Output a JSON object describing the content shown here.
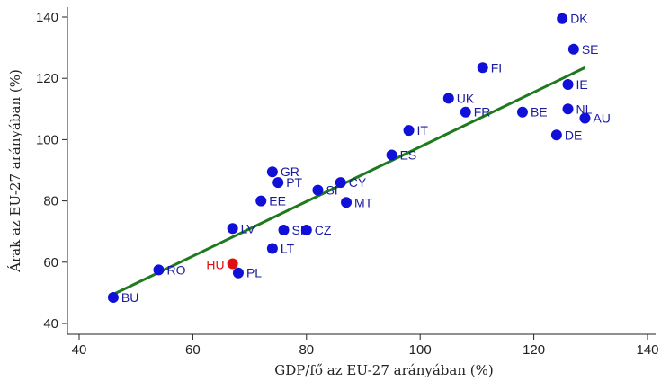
{
  "chart_data": {
    "type": "scatter",
    "xlabel": "GDP/fő az EU-27 arányában (%)",
    "ylabel": "Árak az EU-27 arányában (%)",
    "xlim": [
      40,
      140
    ],
    "ylim": [
      40,
      140
    ],
    "xticks": [
      40,
      60,
      80,
      100,
      120,
      140
    ],
    "yticks": [
      40,
      60,
      80,
      100,
      120,
      140
    ],
    "grid": false,
    "colors": {
      "point": "#1010d8",
      "highlight": "#e01010",
      "label": "#1a1aa0",
      "highlight_label": "#e01010",
      "fit_line": "#1f7a1f"
    },
    "points": [
      {
        "label": "DK",
        "x": 125,
        "y": 139.5
      },
      {
        "label": "SE",
        "x": 127,
        "y": 129.5
      },
      {
        "label": "FI",
        "x": 111,
        "y": 123.5
      },
      {
        "label": "IE",
        "x": 126,
        "y": 118
      },
      {
        "label": "UK",
        "x": 105,
        "y": 113.5
      },
      {
        "label": "NL",
        "x": 126,
        "y": 110
      },
      {
        "label": "FR",
        "x": 108,
        "y": 109
      },
      {
        "label": "BE",
        "x": 118,
        "y": 109
      },
      {
        "label": "AU",
        "x": 129,
        "y": 107
      },
      {
        "label": "IT",
        "x": 98,
        "y": 103
      },
      {
        "label": "DE",
        "x": 124,
        "y": 101.5
      },
      {
        "label": "ES",
        "x": 95,
        "y": 95
      },
      {
        "label": "GR",
        "x": 74,
        "y": 89.5
      },
      {
        "label": "PT",
        "x": 75,
        "y": 86
      },
      {
        "label": "CY",
        "x": 86,
        "y": 86
      },
      {
        "label": "SI",
        "x": 82,
        "y": 83.5
      },
      {
        "label": "EE",
        "x": 72,
        "y": 80
      },
      {
        "label": "MT",
        "x": 87,
        "y": 79.5
      },
      {
        "label": "LV",
        "x": 67,
        "y": 71
      },
      {
        "label": "SK",
        "x": 76,
        "y": 70.5
      },
      {
        "label": "CZ",
        "x": 80,
        "y": 70.5
      },
      {
        "label": "LT",
        "x": 74,
        "y": 64.5
      },
      {
        "label": "HU",
        "x": 67,
        "y": 59.5,
        "highlight": true
      },
      {
        "label": "RO",
        "x": 54,
        "y": 57.5
      },
      {
        "label": "PL",
        "x": 68,
        "y": 56.5
      },
      {
        "label": "BU",
        "x": 46,
        "y": 48.5
      }
    ],
    "fit_line": {
      "from": [
        46,
        49.5
      ],
      "to": [
        129,
        123.5
      ]
    }
  }
}
